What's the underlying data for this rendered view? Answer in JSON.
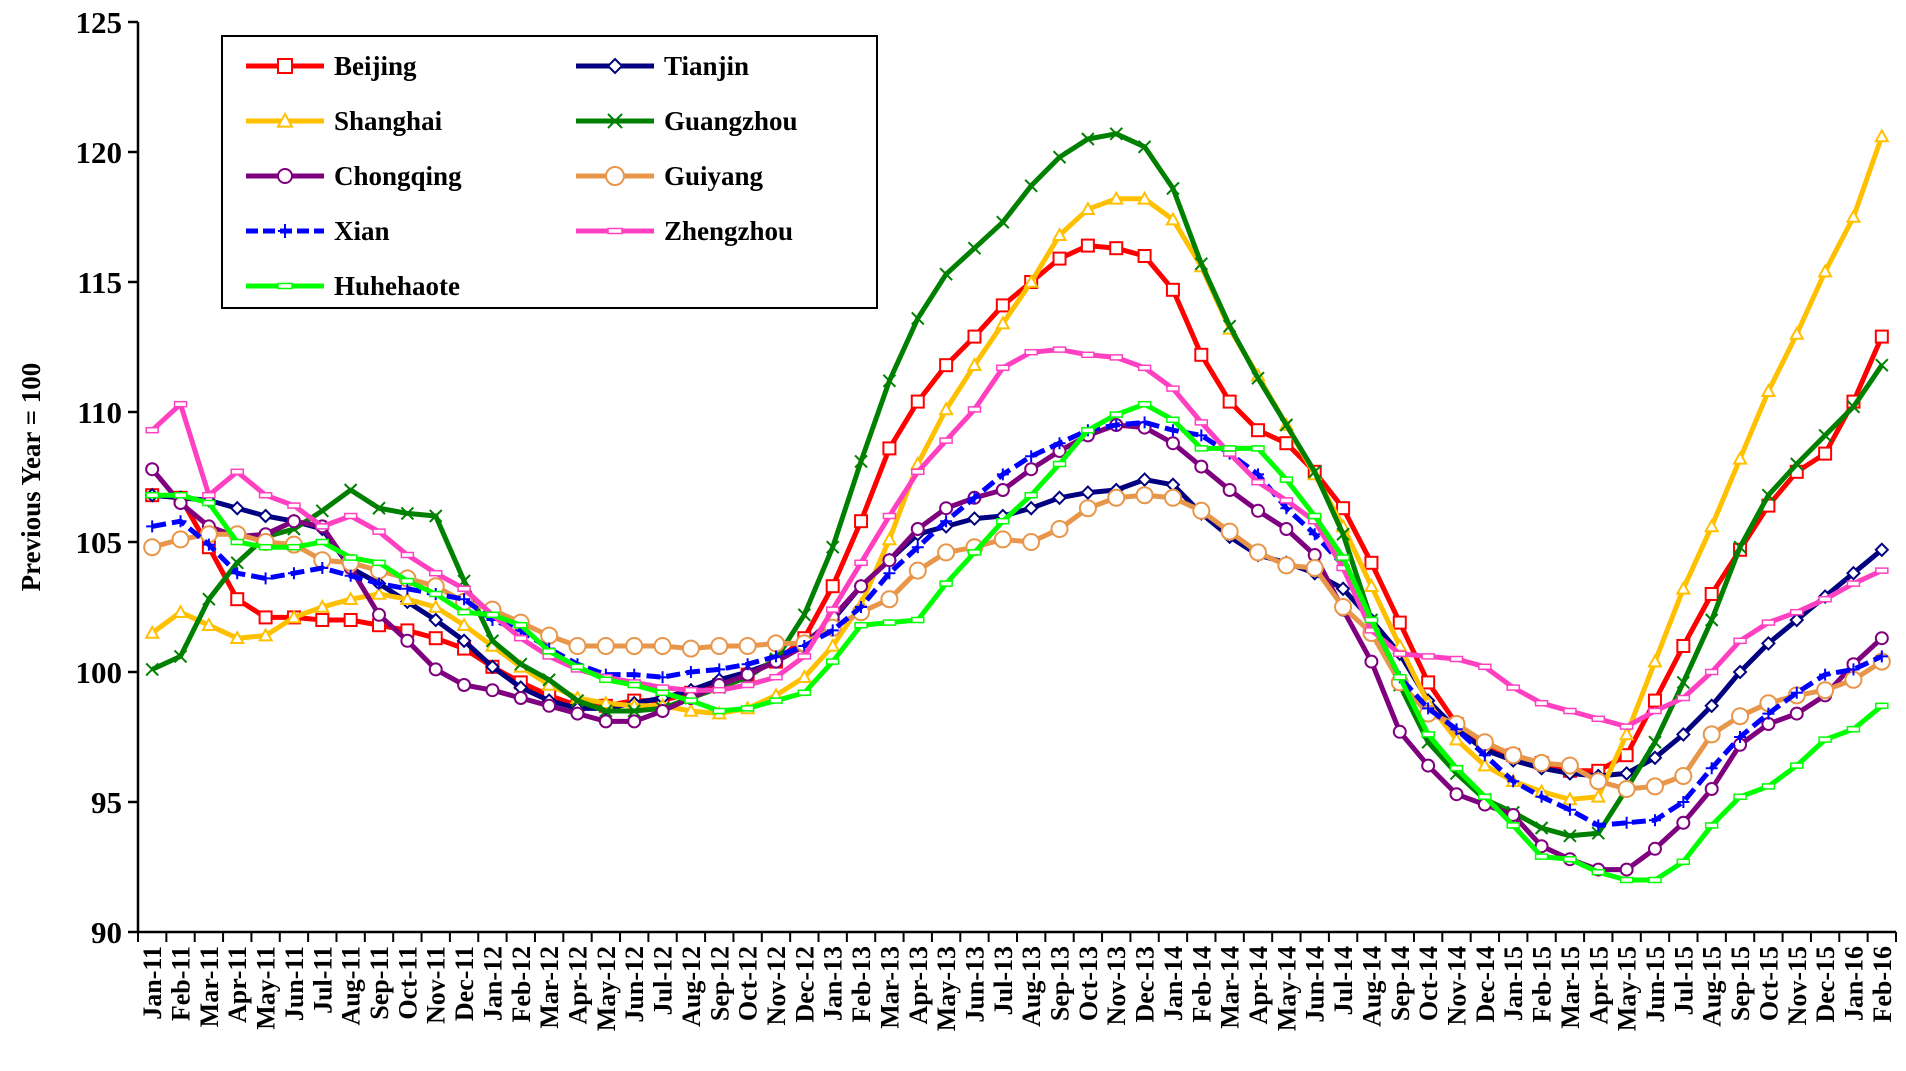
{
  "chart_data": {
    "type": "line",
    "ylabel": "Previous Year = 100",
    "xlabel": "",
    "ylim": [
      90,
      125
    ],
    "yticks": [
      90,
      95,
      100,
      105,
      110,
      115,
      120,
      125
    ],
    "grid": false,
    "legend_position": "top-left",
    "categories": [
      "Jan-11",
      "Feb-11",
      "Mar-11",
      "Apr-11",
      "May-11",
      "Jun-11",
      "Jul-11",
      "Aug-11",
      "Sep-11",
      "Oct-11",
      "Nov-11",
      "Dec-11",
      "Jan-12",
      "Feb-12",
      "Mar-12",
      "Apr-12",
      "May-12",
      "Jun-12",
      "Jul-12",
      "Aug-12",
      "Sep-12",
      "Oct-12",
      "Nov-12",
      "Dec-12",
      "Jan-13",
      "Feb-13",
      "Mar-13",
      "Apr-13",
      "May-13",
      "Jun-13",
      "Jul-13",
      "Aug-13",
      "Sep-13",
      "Oct-13",
      "Nov-13",
      "Dec-13",
      "Jan-14",
      "Feb-14",
      "Mar-14",
      "Apr-14",
      "May-14",
      "Jun-14",
      "Jul-14",
      "Aug-14",
      "Sep-14",
      "Oct-14",
      "Nov-14",
      "Dec-14",
      "Jan-15",
      "Feb-15",
      "Mar-15",
      "Apr-15",
      "May-15",
      "Jun-15",
      "Jul-15",
      "Aug-15",
      "Sep-15",
      "Oct-15",
      "Nov-15",
      "Dec-15",
      "Jan-16",
      "Feb-16"
    ],
    "series": [
      {
        "name": "Beijing",
        "color": "#ff0000",
        "marker": "square",
        "values": [
          106.8,
          106.7,
          104.8,
          102.8,
          102.1,
          102.1,
          102.0,
          102.0,
          101.8,
          101.6,
          101.3,
          100.9,
          100.2,
          99.6,
          99.1,
          98.7,
          98.7,
          98.9,
          98.9,
          99.2,
          99.5,
          99.9,
          100.4,
          101.3,
          103.3,
          105.8,
          108.6,
          110.4,
          111.8,
          112.9,
          114.1,
          115.0,
          115.9,
          116.4,
          116.3,
          116.0,
          114.7,
          112.2,
          110.4,
          109.3,
          108.8,
          107.7,
          106.3,
          104.2,
          101.9,
          99.6,
          98.0,
          97.2,
          96.8,
          96.5,
          96.2,
          96.2,
          96.8,
          98.9,
          101.0,
          103.0,
          104.7,
          106.4,
          107.7,
          108.4,
          110.4,
          112.9
        ]
      },
      {
        "name": "Tianjin",
        "color": "#000080",
        "marker": "diamond",
        "values": [
          106.8,
          106.7,
          106.6,
          106.3,
          106.0,
          105.8,
          105.5,
          104.0,
          103.4,
          102.7,
          102.0,
          101.2,
          100.2,
          99.4,
          98.9,
          98.6,
          98.6,
          98.8,
          99.0,
          99.3,
          99.7,
          100.0,
          100.4,
          101.1,
          102.0,
          103.3,
          104.3,
          105.3,
          105.6,
          105.9,
          106.0,
          106.3,
          106.7,
          106.9,
          107.0,
          107.4,
          107.2,
          106.1,
          105.2,
          104.5,
          104.2,
          103.8,
          103.2,
          102.0,
          100.7,
          98.9,
          97.8,
          97.0,
          96.6,
          96.3,
          96.1,
          96.0,
          96.1,
          96.7,
          97.6,
          98.7,
          100.0,
          101.1,
          102.0,
          102.9,
          103.8,
          104.7
        ]
      },
      {
        "name": "Shanghai",
        "color": "#ffc000",
        "marker": "triangle",
        "values": [
          101.5,
          102.3,
          101.8,
          101.3,
          101.4,
          102.1,
          102.5,
          102.8,
          103.0,
          102.8,
          102.5,
          101.8,
          101.0,
          100.2,
          99.5,
          99.0,
          98.8,
          98.7,
          98.7,
          98.5,
          98.4,
          98.6,
          99.1,
          99.8,
          101.0,
          102.6,
          105.1,
          108.0,
          110.1,
          111.8,
          113.4,
          115.0,
          116.8,
          117.8,
          118.2,
          118.2,
          117.4,
          115.6,
          113.2,
          111.4,
          109.5,
          107.6,
          105.6,
          103.3,
          101.0,
          98.8,
          97.4,
          96.4,
          95.8,
          95.4,
          95.1,
          95.2,
          97.6,
          100.4,
          103.2,
          105.6,
          108.2,
          110.8,
          113.0,
          115.4,
          117.5,
          120.6
        ]
      },
      {
        "name": "Guangzhou",
        "color": "#008000",
        "marker": "x",
        "values": [
          100.1,
          100.6,
          102.8,
          104.2,
          105.2,
          105.5,
          106.2,
          107.0,
          106.3,
          106.1,
          106.0,
          103.5,
          101.2,
          100.3,
          99.7,
          98.9,
          98.5,
          98.5,
          98.6,
          99.0,
          99.4,
          99.8,
          100.5,
          102.2,
          104.8,
          108.1,
          111.2,
          113.6,
          115.3,
          116.3,
          117.3,
          118.7,
          119.8,
          120.5,
          120.7,
          120.2,
          118.6,
          115.7,
          113.3,
          111.3,
          109.5,
          107.7,
          105.3,
          102.0,
          99.5,
          97.3,
          96.1,
          95.1,
          94.6,
          94.0,
          93.7,
          93.8,
          95.5,
          97.3,
          99.6,
          102.0,
          104.8,
          106.8,
          108.0,
          109.1,
          110.2,
          111.8
        ]
      },
      {
        "name": "Chongqing",
        "color": "#7f007f",
        "marker": "circle",
        "values": [
          107.8,
          106.5,
          105.6,
          105.2,
          105.3,
          105.8,
          105.6,
          104.0,
          102.2,
          101.2,
          100.1,
          99.5,
          99.3,
          99.0,
          98.7,
          98.4,
          98.1,
          98.1,
          98.5,
          99.0,
          99.5,
          99.9,
          100.4,
          101.0,
          102.1,
          103.3,
          104.3,
          105.5,
          106.3,
          106.7,
          107.0,
          107.8,
          108.5,
          109.1,
          109.5,
          109.4,
          108.8,
          107.9,
          107.0,
          106.2,
          105.5,
          104.5,
          102.4,
          100.4,
          97.7,
          96.4,
          95.3,
          94.9,
          94.5,
          93.3,
          92.8,
          92.4,
          92.4,
          93.2,
          94.2,
          95.5,
          97.2,
          98.0,
          98.4,
          99.1,
          100.3,
          101.3
        ]
      },
      {
        "name": "Guiyang",
        "color": "#e8964a",
        "marker": "circle-open",
        "values": [
          104.8,
          105.1,
          105.3,
          105.3,
          105.0,
          104.9,
          104.3,
          104.2,
          103.9,
          103.6,
          103.3,
          102.7,
          102.4,
          101.9,
          101.4,
          101.0,
          101.0,
          101.0,
          101.0,
          100.9,
          101.0,
          101.0,
          101.1,
          101.1,
          101.7,
          102.3,
          102.8,
          103.9,
          104.6,
          104.8,
          105.1,
          105.0,
          105.5,
          106.3,
          106.7,
          106.8,
          106.7,
          106.2,
          105.4,
          104.6,
          104.1,
          104.0,
          102.5,
          101.5,
          99.6,
          98.4,
          98.0,
          97.3,
          96.8,
          96.5,
          96.4,
          95.8,
          95.5,
          95.6,
          96.0,
          97.6,
          98.3,
          98.8,
          99.1,
          99.3,
          99.7,
          100.4
        ]
      },
      {
        "name": "Xian",
        "color": "#0000ff",
        "marker": "plus",
        "values": [
          105.6,
          105.8,
          104.9,
          103.8,
          103.6,
          103.8,
          104.0,
          103.7,
          103.4,
          103.2,
          103.0,
          102.8,
          102.0,
          101.6,
          100.9,
          100.3,
          99.9,
          99.9,
          99.8,
          100.0,
          100.1,
          100.3,
          100.6,
          101.0,
          101.6,
          102.5,
          103.8,
          104.8,
          105.8,
          106.7,
          107.6,
          108.3,
          108.8,
          109.3,
          109.5,
          109.6,
          109.3,
          109.1,
          108.4,
          107.6,
          106.3,
          105.3,
          104.1,
          102.0,
          99.8,
          98.6,
          97.8,
          96.8,
          95.8,
          95.2,
          94.7,
          94.1,
          94.2,
          94.3,
          95.0,
          96.3,
          97.5,
          98.4,
          99.2,
          99.9,
          100.1,
          100.6
        ]
      },
      {
        "name": "Zhengzhou",
        "color": "#ff40c0",
        "marker": "line",
        "values": [
          109.3,
          110.3,
          106.8,
          107.7,
          106.8,
          106.4,
          105.6,
          106.0,
          105.4,
          104.5,
          103.8,
          103.2,
          102.2,
          101.3,
          100.6,
          100.1,
          99.8,
          99.6,
          99.4,
          99.3,
          99.3,
          99.5,
          99.8,
          100.6,
          102.4,
          104.2,
          106.0,
          107.7,
          108.9,
          110.1,
          111.7,
          112.3,
          112.4,
          112.2,
          112.1,
          111.7,
          110.9,
          109.6,
          108.4,
          107.3,
          106.6,
          105.8,
          104.0,
          101.6,
          100.7,
          100.6,
          100.5,
          100.2,
          99.4,
          98.8,
          98.5,
          98.2,
          97.9,
          98.5,
          99.0,
          100.0,
          101.2,
          101.9,
          102.3,
          102.8,
          103.4,
          103.9
        ]
      },
      {
        "name": "Huhehaote",
        "color": "#00ff00",
        "marker": "line",
        "values": [
          106.8,
          106.8,
          106.5,
          105.0,
          104.8,
          104.8,
          105.0,
          104.4,
          104.2,
          103.5,
          103.0,
          102.3,
          102.2,
          101.8,
          100.8,
          100.2,
          99.7,
          99.5,
          99.2,
          98.9,
          98.5,
          98.6,
          98.9,
          99.2,
          100.4,
          101.8,
          101.9,
          102.0,
          103.4,
          104.6,
          105.8,
          106.8,
          108.0,
          109.3,
          109.9,
          110.3,
          109.7,
          108.6,
          108.6,
          108.6,
          107.4,
          106.0,
          104.4,
          102.0,
          99.8,
          97.6,
          96.3,
          95.2,
          94.1,
          92.9,
          92.8,
          92.3,
          92.0,
          92.0,
          92.7,
          94.1,
          95.2,
          95.6,
          96.4,
          97.4,
          97.8,
          98.7
        ]
      }
    ]
  }
}
